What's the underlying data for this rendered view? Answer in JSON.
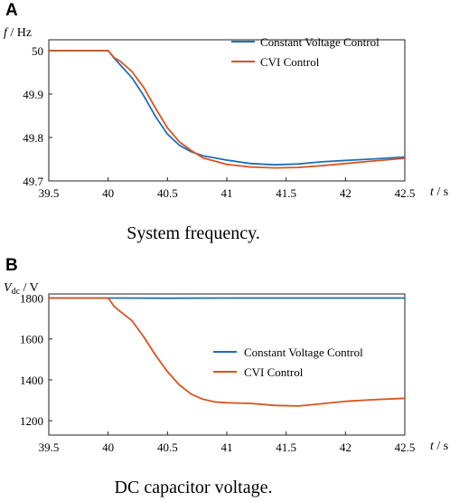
{
  "chart_data": [
    {
      "type": "line",
      "panel_label": "A",
      "ylabel_symbol": "f",
      "ylabel_unit": " / Hz",
      "xlabel_symbol": "t",
      "xlabel_unit": " / s",
      "caption": "System frequency.",
      "xlim": [
        39.5,
        42.5
      ],
      "ylim": [
        49.7,
        50.025
      ],
      "xticks": [
        39.5,
        40,
        40.5,
        41,
        41.5,
        42,
        42.5
      ],
      "xtick_labels": [
        "39.5",
        "40",
        "40.5",
        "41",
        "41.5",
        "42",
        "42.5"
      ],
      "yticks": [
        49.7,
        49.8,
        49.9,
        50
      ],
      "ytick_labels": [
        "49.7",
        "49.8",
        "49.9",
        "50"
      ],
      "legend_position": "top-right",
      "series": [
        {
          "name": "Constant Voltage Control",
          "color": "#1f6fb4",
          "x": [
            39.5,
            40.0,
            40.05,
            40.1,
            40.2,
            40.3,
            40.4,
            40.5,
            40.6,
            40.7,
            40.8,
            41.0,
            41.2,
            41.4,
            41.6,
            41.8,
            42.0,
            42.2,
            42.5
          ],
          "y": [
            50.0,
            50.0,
            49.983,
            49.968,
            49.938,
            49.896,
            49.848,
            49.808,
            49.782,
            49.767,
            49.758,
            49.748,
            49.74,
            49.737,
            49.739,
            49.744,
            49.747,
            49.75,
            49.755
          ]
        },
        {
          "name": "CVI Control",
          "color": "#d9531e",
          "x": [
            39.5,
            40.0,
            40.05,
            40.1,
            40.2,
            40.3,
            40.4,
            40.5,
            40.6,
            40.7,
            40.8,
            41.0,
            41.2,
            41.4,
            41.6,
            41.8,
            42.0,
            42.2,
            42.5
          ],
          "y": [
            50.0,
            50.0,
            49.984,
            49.976,
            49.952,
            49.915,
            49.867,
            49.822,
            49.79,
            49.77,
            49.753,
            49.738,
            49.732,
            49.73,
            49.731,
            49.735,
            49.74,
            49.745,
            49.752
          ]
        }
      ]
    },
    {
      "type": "line",
      "panel_label": "B",
      "ylabel_symbol": "V",
      "ylabel_subscript": "dc",
      "ylabel_unit": " / V",
      "xlabel_symbol": "t",
      "xlabel_unit": " / s",
      "caption": "DC capacitor voltage.",
      "xlim": [
        39.5,
        42.5
      ],
      "ylim": [
        1130,
        1820
      ],
      "xticks": [
        39.5,
        40,
        40.5,
        41,
        41.5,
        42,
        42.5
      ],
      "xtick_labels": [
        "39.5",
        "40",
        "40.5",
        "41",
        "41.5",
        "42",
        "42.5"
      ],
      "yticks": [
        1200,
        1400,
        1600,
        1800
      ],
      "ytick_labels": [
        "1200",
        "1400",
        "1600",
        "1800"
      ],
      "legend_position": "center-right",
      "series": [
        {
          "name": "Constant Voltage Control",
          "color": "#1f6fb4",
          "x": [
            39.5,
            40.0,
            40.5,
            41.0,
            41.5,
            42.0,
            42.5
          ],
          "y": [
            1800,
            1800,
            1799,
            1800,
            1800,
            1800,
            1800
          ]
        },
        {
          "name": "CVI Control",
          "color": "#d9531e",
          "x": [
            39.5,
            40.0,
            40.05,
            40.1,
            40.2,
            40.3,
            40.4,
            40.5,
            40.6,
            40.7,
            40.8,
            40.9,
            41.0,
            41.2,
            41.4,
            41.6,
            41.8,
            42.0,
            42.2,
            42.5
          ],
          "y": [
            1800,
            1800,
            1760,
            1735,
            1690,
            1610,
            1520,
            1440,
            1375,
            1330,
            1305,
            1292,
            1288,
            1285,
            1275,
            1272,
            1283,
            1295,
            1302,
            1310
          ]
        }
      ]
    }
  ]
}
